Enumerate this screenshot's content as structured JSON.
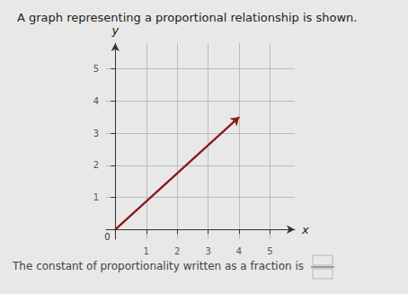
{
  "chart_data": {
    "type": "line",
    "title": "A graph representing a proportional relationship is shown.",
    "x_label": "x",
    "y_label": "y",
    "x": [
      0,
      4.0
    ],
    "values": [
      0,
      3.5
    ],
    "color": "#8b1a1a",
    "xlim": [
      -0.3,
      5.8
    ],
    "ylim": [
      -0.3,
      5.8
    ],
    "xticks": [
      1,
      2,
      3,
      4,
      5
    ],
    "yticks": [
      1,
      2,
      3,
      4,
      5
    ],
    "grid": true,
    "annotations": [
      {
        "text": "0",
        "x": 0,
        "y": 0
      },
      {
        "text": "The constant of proportionality written as a fraction is"
      }
    ]
  }
}
